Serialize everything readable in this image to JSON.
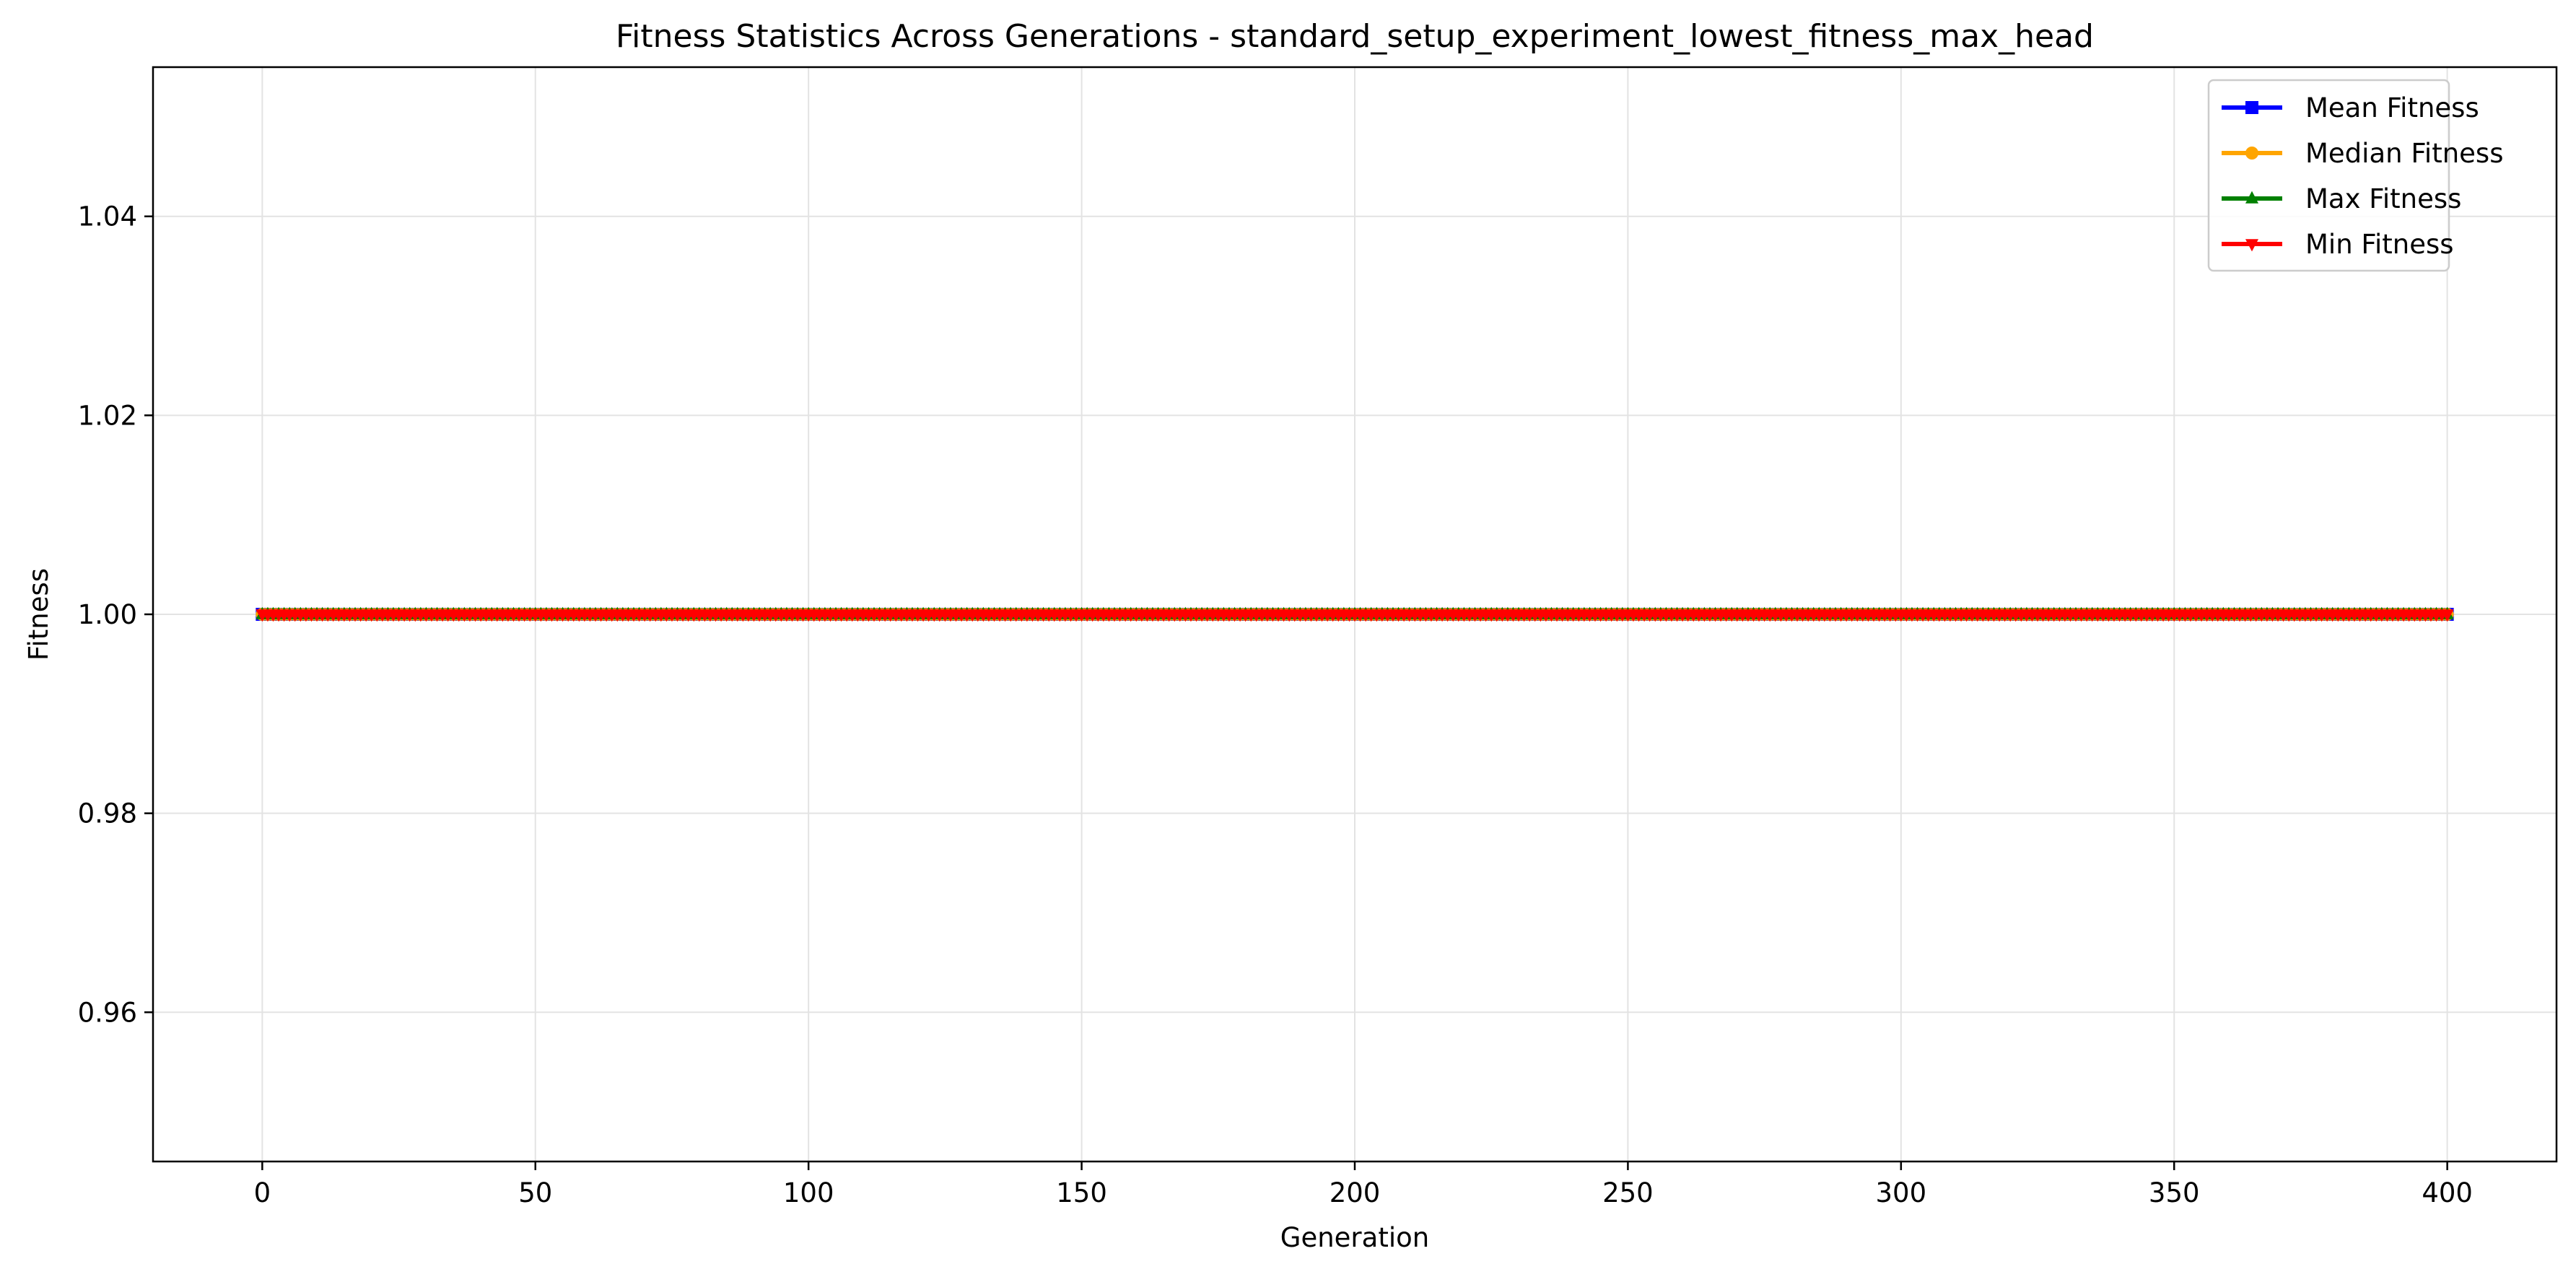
{
  "chart_data": {
    "type": "line",
    "title": "Fitness Statistics Across Generations - standard_setup_experiment_lowest_fitness_max_head",
    "xlabel": "Generation",
    "ylabel": "Fitness",
    "xlim": [
      -20,
      420
    ],
    "ylim": [
      0.945,
      1.055
    ],
    "xticks": [
      0,
      50,
      100,
      150,
      200,
      250,
      300,
      350,
      400
    ],
    "yticks": [
      0.96,
      0.98,
      1.0,
      1.02,
      1.04
    ],
    "ytick_labels": [
      "0.96",
      "0.98",
      "1.00",
      "1.02",
      "1.04"
    ],
    "grid": true,
    "legend_position": "top-right",
    "x_range": [
      0,
      400
    ],
    "x_step": 1,
    "series": [
      {
        "name": "Mean Fitness",
        "color": "#0000ff",
        "marker": "square",
        "value": 1.0
      },
      {
        "name": "Median Fitness",
        "color": "#ffa500",
        "marker": "circle",
        "value": 1.0
      },
      {
        "name": "Max Fitness",
        "color": "#008000",
        "marker": "triangle-up",
        "value": 1.0
      },
      {
        "name": "Min Fitness",
        "color": "#ff0000",
        "marker": "triangle-down",
        "value": 1.0
      }
    ]
  }
}
